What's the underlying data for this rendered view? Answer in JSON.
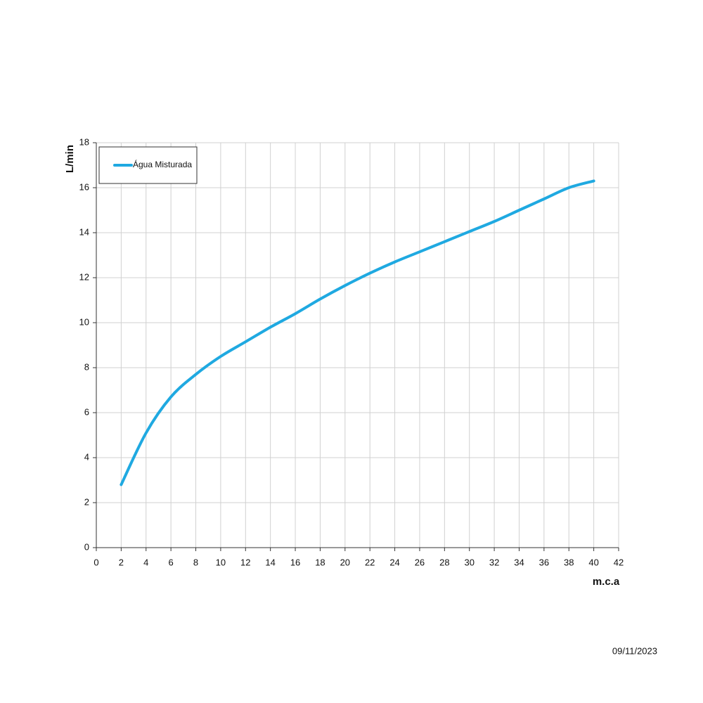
{
  "chart_data": {
    "type": "line",
    "x_label": "m.c.a",
    "y_label": "L/min",
    "date": "09/11/2023",
    "x": [
      2,
      4,
      6,
      8,
      10,
      12,
      14,
      16,
      18,
      20,
      22,
      24,
      26,
      28,
      30,
      32,
      34,
      36,
      38,
      40
    ],
    "series": [
      {
        "name": "Água Misturada",
        "color": "#1fa9e1",
        "values": [
          2.8,
          5.1,
          6.7,
          7.7,
          8.5,
          9.15,
          9.8,
          10.4,
          11.05,
          11.65,
          12.2,
          12.7,
          13.15,
          13.6,
          14.05,
          14.5,
          15.0,
          15.5,
          16.0,
          16.3
        ]
      }
    ],
    "xlim": [
      0,
      42
    ],
    "xticks": [
      0,
      2,
      4,
      6,
      8,
      10,
      12,
      14,
      16,
      18,
      20,
      22,
      24,
      26,
      28,
      30,
      32,
      34,
      36,
      38,
      40,
      42
    ],
    "ylim": [
      0,
      18
    ],
    "yticks": [
      0,
      2,
      4,
      6,
      8,
      10,
      12,
      14,
      16,
      18
    ],
    "grid": true,
    "legend": "top-left"
  }
}
